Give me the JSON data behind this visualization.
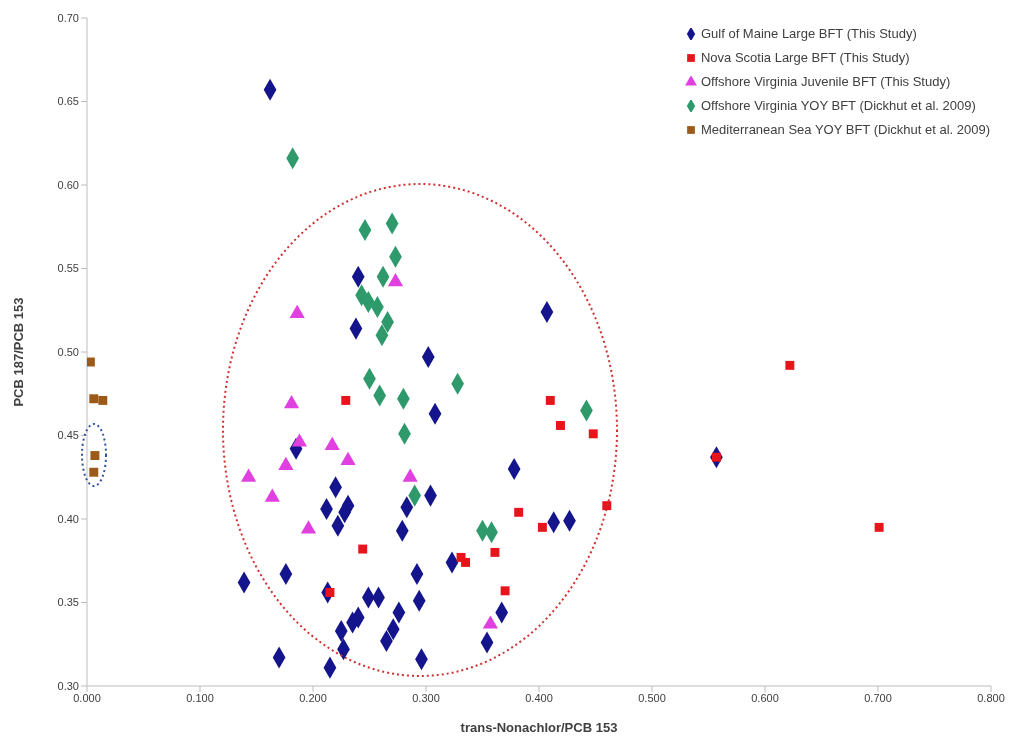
{
  "chart_data": {
    "type": "scatter",
    "xlabel": "trans-Nonachlor/PCB 153",
    "ylabel": "PCB 187/PCB 153",
    "xlim": [
      0,
      0.8
    ],
    "ylim": [
      0.3,
      0.7
    ],
    "xticks": [
      {
        "value": 0,
        "label": "0.000"
      },
      {
        "value": 0.1,
        "label": "0.100"
      },
      {
        "value": 0.2,
        "label": "0.200"
      },
      {
        "value": 0.3,
        "label": "0.300"
      },
      {
        "value": 0.4,
        "label": "0.400"
      },
      {
        "value": 0.5,
        "label": "0.500"
      },
      {
        "value": 0.6,
        "label": "0.600"
      },
      {
        "value": 0.7,
        "label": "0.700"
      },
      {
        "value": 0.8,
        "label": "0.800"
      }
    ],
    "yticks": [
      {
        "value": 0.3,
        "label": "0.30"
      },
      0.35,
      {
        "value": 0.4,
        "label": "0.40"
      },
      0.45,
      {
        "value": 0.5,
        "label": "0.50"
      },
      0.55,
      {
        "value": 0.6,
        "label": "0.60"
      },
      0.65,
      {
        "value": 0.7,
        "label": "0.70"
      }
    ],
    "grid": false,
    "legend": "top right",
    "series": [
      {
        "name": "Gulf of Maine Large BFT (This Study)",
        "color": "#14148c",
        "marker": "diamond",
        "x": [
          0.162,
          0.24,
          0.238,
          0.302,
          0.407,
          0.185,
          0.22,
          0.212,
          0.231,
          0.228,
          0.222,
          0.139,
          0.176,
          0.17,
          0.215,
          0.227,
          0.225,
          0.235,
          0.24,
          0.249,
          0.213,
          0.308,
          0.283,
          0.304,
          0.279,
          0.378,
          0.292,
          0.323,
          0.413,
          0.427,
          0.258,
          0.294,
          0.276,
          0.271,
          0.265,
          0.296,
          0.367,
          0.354,
          0.557
        ],
        "values": [
          0.657,
          0.545,
          0.514,
          0.497,
          0.524,
          0.442,
          0.419,
          0.406,
          0.408,
          0.404,
          0.396,
          0.362,
          0.367,
          0.317,
          0.311,
          0.322,
          0.333,
          0.338,
          0.341,
          0.353,
          0.356,
          0.463,
          0.407,
          0.414,
          0.393,
          0.43,
          0.367,
          0.374,
          0.398,
          0.399,
          0.353,
          0.351,
          0.344,
          0.334,
          0.327,
          0.316,
          0.344,
          0.326,
          0.437
        ]
      },
      {
        "name": "Nova Scotia Large BFT (This Study)",
        "color": "#e8141c",
        "marker": "square",
        "x": [
          0.229,
          0.244,
          0.215,
          0.41,
          0.419,
          0.448,
          0.382,
          0.403,
          0.46,
          0.331,
          0.335,
          0.361,
          0.37,
          0.622,
          0.557,
          0.701
        ],
        "values": [
          0.471,
          0.382,
          0.356,
          0.471,
          0.456,
          0.451,
          0.404,
          0.395,
          0.408,
          0.377,
          0.374,
          0.38,
          0.357,
          0.492,
          0.437,
          0.395
        ]
      },
      {
        "name": "Offshore Virginia Juvenile BFT (This Study)",
        "color": "#e040e0",
        "marker": "triangle",
        "x": [
          0.181,
          0.188,
          0.217,
          0.231,
          0.176,
          0.143,
          0.164,
          0.196,
          0.273,
          0.186,
          0.286,
          0.357
        ],
        "values": [
          0.469,
          0.446,
          0.444,
          0.435,
          0.432,
          0.425,
          0.413,
          0.394,
          0.542,
          0.523,
          0.425,
          0.337
        ]
      },
      {
        "name": "Offshore Virginia YOY BFT (Dickhut et al. 2009)",
        "color": "#2e9a6c",
        "marker": "diamond",
        "x": [
          0.182,
          0.246,
          0.27,
          0.273,
          0.262,
          0.243,
          0.249,
          0.257,
          0.266,
          0.261,
          0.25,
          0.328,
          0.259,
          0.28,
          0.281,
          0.29,
          0.35,
          0.358,
          0.442
        ],
        "values": [
          0.616,
          0.573,
          0.577,
          0.557,
          0.545,
          0.534,
          0.53,
          0.527,
          0.518,
          0.51,
          0.484,
          0.481,
          0.474,
          0.472,
          0.451,
          0.414,
          0.393,
          0.392,
          0.465
        ]
      },
      {
        "name": "Mediterranean Sea YOY BFT (Dickhut et al. 2009)",
        "color": "#9b5a1a",
        "marker": "square",
        "x": [
          0.003,
          0.006,
          0.014,
          0.007,
          0.006
        ],
        "values": [
          0.494,
          0.472,
          0.471,
          0.438,
          0.428
        ]
      }
    ]
  }
}
